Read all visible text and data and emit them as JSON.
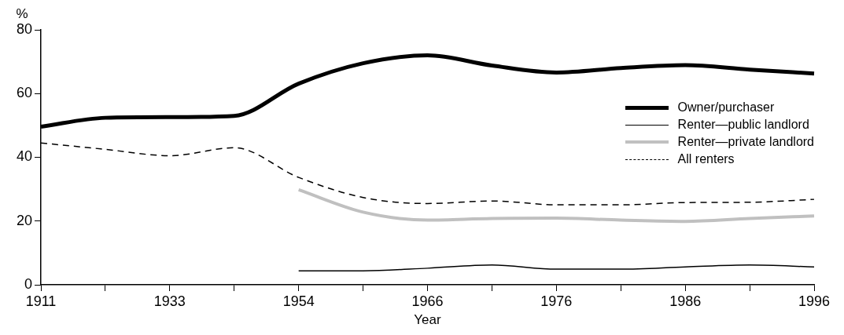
{
  "chart_data": {
    "type": "line",
    "xlabel": "Year",
    "ylabel": "%",
    "categories": [
      "1911",
      null,
      "1933",
      null,
      "1954",
      null,
      "1966",
      null,
      "1976",
      null,
      "1986",
      null,
      "1996"
    ],
    "ylim": [
      0,
      80
    ],
    "yticks": [
      0,
      20,
      40,
      60,
      80
    ],
    "grid": false,
    "legend": "right",
    "marker": "none",
    "series": [
      {
        "name": "Owner/purchaser",
        "color": "#000000",
        "values": [
          49.6,
          52.4,
          52.6,
          53.0,
          63.1,
          69.5,
          72.0,
          68.8,
          66.6,
          68.0,
          68.9,
          67.5,
          66.3
        ]
      },
      {
        "name": "Renter—public landlord",
        "color": "#000000",
        "values": [
          null,
          null,
          null,
          null,
          4.4,
          4.4,
          5.2,
          6.2,
          4.9,
          4.9,
          5.6,
          6.2,
          5.6
        ]
      },
      {
        "name": "Renter—private landlord",
        "color": "#c0c0c0",
        "values": [
          null,
          null,
          null,
          null,
          29.8,
          22.8,
          20.3,
          20.8,
          20.9,
          20.3,
          19.9,
          20.8,
          21.6
        ]
      },
      {
        "name": "All renters",
        "color": "#000000",
        "line_style": "dashed",
        "values": [
          44.5,
          42.5,
          40.5,
          43.0,
          33.7,
          27.4,
          25.5,
          26.3,
          25.1,
          25.1,
          25.8,
          25.9,
          26.8
        ]
      }
    ]
  }
}
